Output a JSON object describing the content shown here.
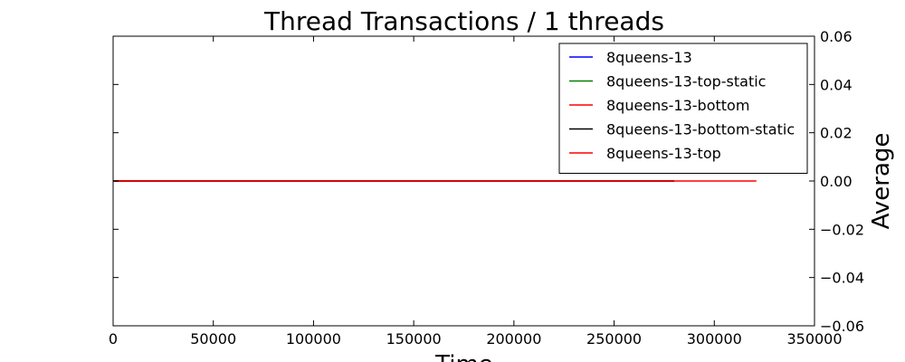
{
  "chart_data": {
    "type": "line",
    "title": "Thread Transactions / 1 threads",
    "xlabel": "Time",
    "ylabel": "Average",
    "xlim": [
      0,
      350000
    ],
    "ylim": [
      -0.06,
      0.06
    ],
    "xticks": [
      0,
      50000,
      100000,
      150000,
      200000,
      250000,
      300000,
      350000
    ],
    "yticks": [
      0.06,
      0.04,
      0.02,
      0.0,
      -0.02,
      -0.04,
      -0.06
    ],
    "x_tick_labels": [
      "0",
      "50000",
      "100000",
      "150000",
      "200000",
      "250000",
      "300000",
      "350000"
    ],
    "y_tick_labels": [
      "0.06",
      "0.04",
      "0.02",
      "0.00",
      "−0.02",
      "−0.04",
      "−0.06"
    ],
    "y_axis_side": "right",
    "grid": false,
    "legend_position": "top-right",
    "series": [
      {
        "name": "8queens-13",
        "color": "#0000ff",
        "x": [
          0,
          280000
        ],
        "y": [
          0,
          0
        ]
      },
      {
        "name": "8queens-13-top-static",
        "color": "#008000",
        "x": [
          0,
          280000
        ],
        "y": [
          0,
          0
        ]
      },
      {
        "name": "8queens-13-bottom",
        "color": "#ff0000",
        "x": [
          0,
          321000
        ],
        "y": [
          0,
          0
        ]
      },
      {
        "name": "8queens-13-bottom-static",
        "color": "#000000",
        "x": [
          0,
          280000
        ],
        "y": [
          0,
          0
        ]
      },
      {
        "name": "8queens-13-top",
        "color": "#ff0000",
        "x": [
          0,
          280000
        ],
        "y": [
          0,
          0
        ]
      }
    ]
  }
}
